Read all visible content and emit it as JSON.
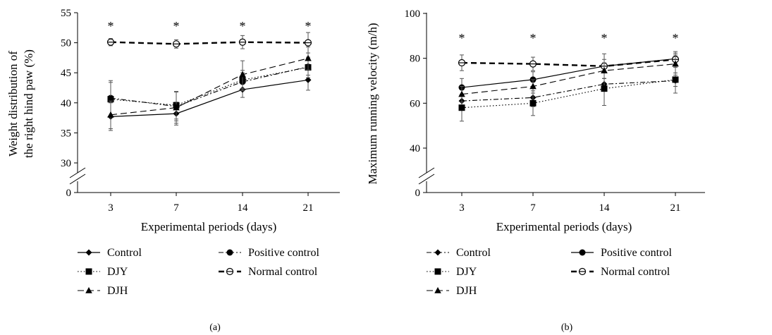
{
  "chart_data": [
    {
      "panel": "(a)",
      "type": "line",
      "xlabel": "Experimental periods (days)",
      "ylabel": [
        "Weight distribution of",
        "the right hind paw (%)"
      ],
      "categories": [
        "3",
        "7",
        "14",
        "21"
      ],
      "yticks": [
        30,
        35,
        40,
        45,
        50,
        55
      ],
      "ylim": [
        30,
        55
      ],
      "axis_break": true,
      "series": [
        {
          "name": "Control",
          "marker": "diamond",
          "dash": "solid",
          "values": [
            37.7,
            38.2,
            42.2,
            43.8
          ],
          "errors": [
            2.3,
            1.9,
            1.3,
            1.7
          ]
        },
        {
          "name": "Positive control",
          "marker": "circle",
          "dash": "dashdot",
          "values": [
            40.8,
            39.4,
            43.5,
            46.0
          ],
          "errors": [
            2.9,
            2.4,
            1.5,
            1.4
          ]
        },
        {
          "name": "DJY",
          "marker": "square",
          "dash": "dotted",
          "values": [
            40.6,
            39.6,
            43.8,
            45.9
          ],
          "errors": [
            2.8,
            2.3,
            1.6,
            1.7
          ]
        },
        {
          "name": "Normal control",
          "marker": "open-circle",
          "dash": "bolddash",
          "values": [
            50.1,
            49.8,
            50.1,
            50.0
          ],
          "errors": [
            0.6,
            0.7,
            1.1,
            1.7
          ]
        },
        {
          "name": "DJH",
          "marker": "triangle",
          "dash": "longdash",
          "values": [
            38.0,
            39.2,
            44.7,
            47.4
          ],
          "errors": [
            2.3,
            2.6,
            2.3,
            1.9
          ]
        }
      ],
      "annotations": [
        "*",
        "*",
        "*",
        "*"
      ]
    },
    {
      "panel": "(b)",
      "type": "line",
      "xlabel": "Experimental periods (days)",
      "ylabel": [
        "Maximum running velocity (m/h)"
      ],
      "categories": [
        "3",
        "7",
        "14",
        "21"
      ],
      "yticks": [
        40,
        60,
        80,
        100
      ],
      "ylim": [
        40,
        100
      ],
      "axis_break": true,
      "series": [
        {
          "name": "Control",
          "marker": "diamond",
          "dash": "dashdot",
          "values": [
            61.0,
            62.5,
            68.5,
            70.0
          ],
          "errors": [
            3.0,
            4.0,
            2.5,
            2.5
          ]
        },
        {
          "name": "Positive control",
          "marker": "circle",
          "dash": "solid",
          "values": [
            67.0,
            70.5,
            76.5,
            79.8
          ],
          "errors": [
            4.0,
            3.5,
            3.0,
            2.5
          ]
        },
        {
          "name": "DJY",
          "marker": "square",
          "dash": "dotted",
          "values": [
            58.0,
            60.0,
            66.5,
            70.5
          ],
          "errors": [
            6.0,
            5.5,
            7.5,
            6.0
          ]
        },
        {
          "name": "Normal control",
          "marker": "open-circle",
          "dash": "bolddash",
          "values": [
            78.0,
            77.5,
            76.5,
            79.5
          ],
          "errors": [
            3.5,
            3.0,
            5.5,
            3.5
          ]
        },
        {
          "name": "DJH",
          "marker": "triangle",
          "dash": "longdash",
          "values": [
            64.0,
            67.5,
            74.5,
            77.5
          ],
          "errors": [
            3.5,
            3.0,
            3.5,
            4.0
          ]
        }
      ],
      "annotations": [
        "*",
        "*",
        "*",
        "*"
      ]
    }
  ]
}
